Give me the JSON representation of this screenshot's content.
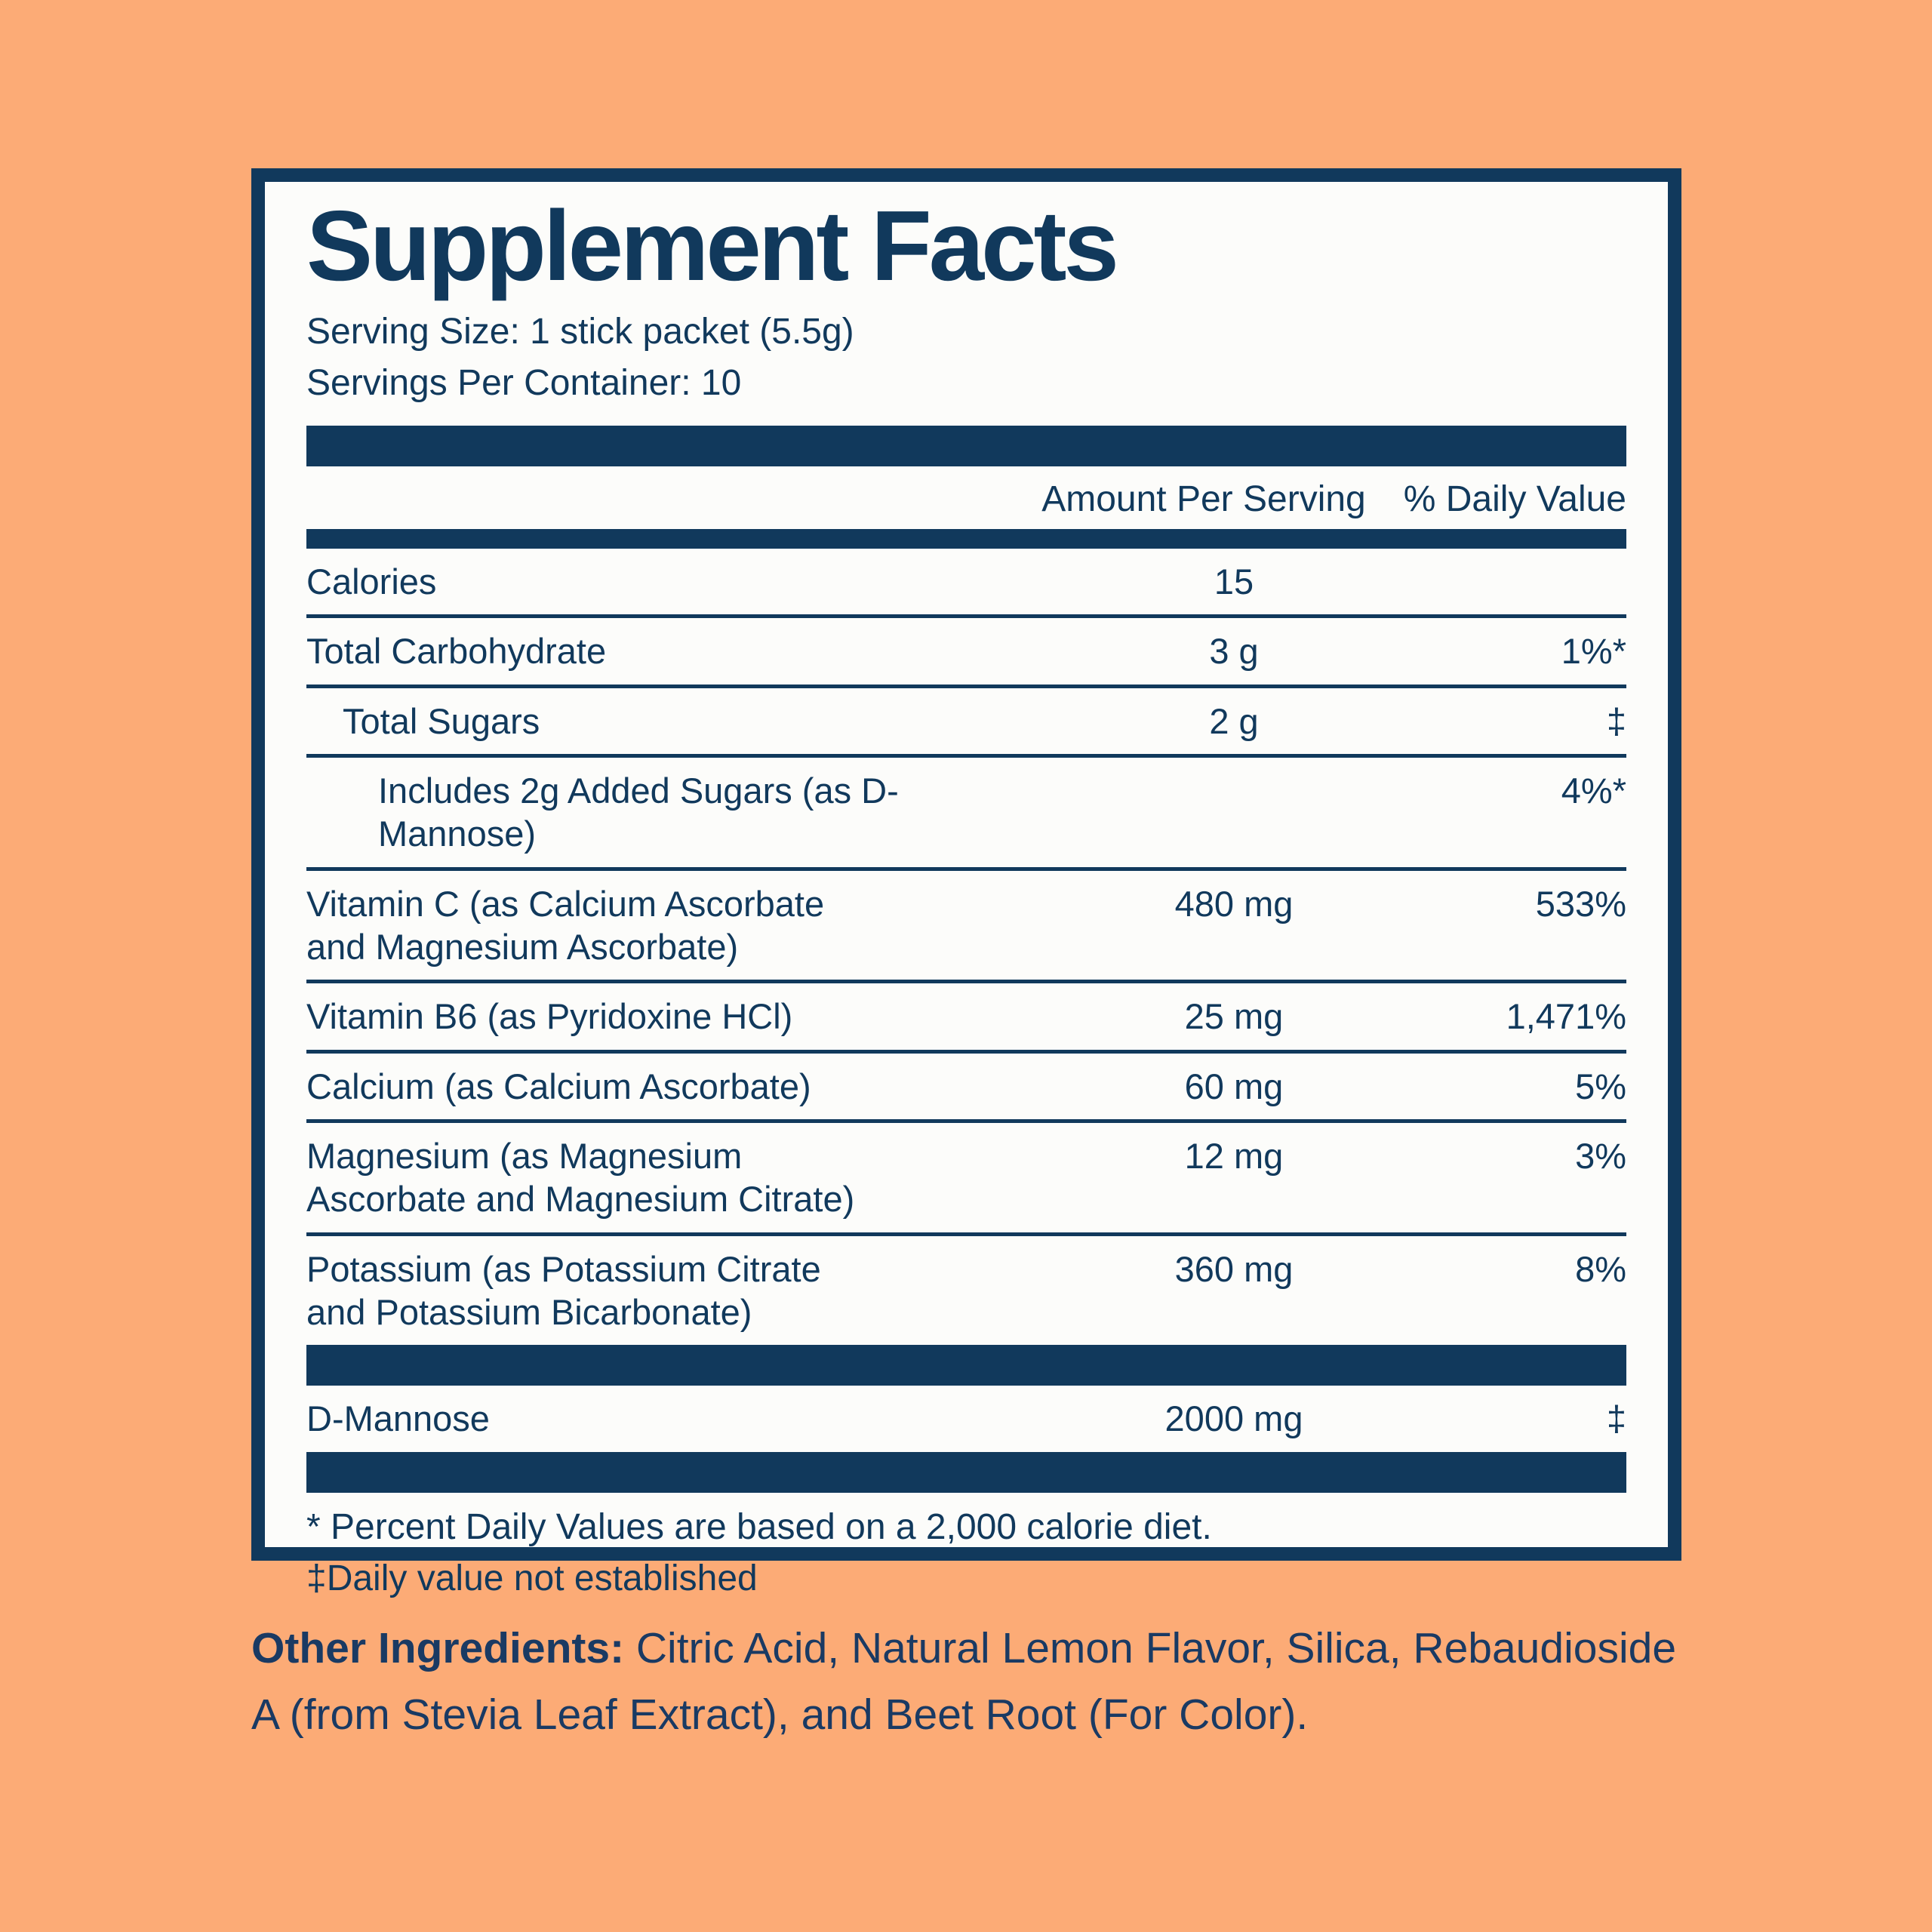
{
  "colors": {
    "background_peach": "#FCAB76",
    "panel_navy": "#11395C",
    "panel_white": "#FCFCFA"
  },
  "panel": {
    "title": "Supplement Facts",
    "serving_size": "Serving Size: 1 stick packet (5.5g)",
    "servings_per_container": "Servings Per Container: 10",
    "header": {
      "amount": "Amount Per Serving",
      "daily_value": "% Daily Value"
    },
    "rows": [
      {
        "name": "Calories",
        "amount": "15",
        "dv": "",
        "indent": 0
      },
      {
        "name": "Total Carbohydrate",
        "amount": "3 g",
        "dv": "1%*",
        "indent": 0
      },
      {
        "name": "Total Sugars",
        "amount": "2 g",
        "dv": "‡",
        "indent": 1
      },
      {
        "name": "Includes 2g Added Sugars (as D-Mannose)",
        "amount": "",
        "dv": "4%*",
        "indent": 2
      },
      {
        "name": "Vitamin C (as Calcium Ascorbate\nand Magnesium Ascorbate)",
        "amount": "480 mg",
        "dv": "533%",
        "indent": 0
      },
      {
        "name": "Vitamin B6 (as Pyridoxine HCl)",
        "amount": "25 mg",
        "dv": "1,471%",
        "indent": 0
      },
      {
        "name": "Calcium (as Calcium Ascorbate)",
        "amount": "60 mg",
        "dv": "5%",
        "indent": 0
      },
      {
        "name": "Magnesium (as Magnesium\nAscorbate and Magnesium Citrate)",
        "amount": "12 mg",
        "dv": "3%",
        "indent": 0
      },
      {
        "name": "Potassium (as Potassium Citrate\nand Potassium Bicarbonate)",
        "amount": "360 mg",
        "dv": "8%",
        "indent": 0
      }
    ],
    "extra_rows": [
      {
        "name": "D-Mannose",
        "amount": "2000 mg",
        "dv": "‡",
        "indent": 0
      }
    ],
    "footnotes": [
      "* Percent Daily Values are based on a 2,000 calorie diet.",
      "‡Daily value not established"
    ]
  },
  "other_ingredients": {
    "label": "Other Ingredients:",
    "text": " Citric Acid, Natural Lemon Flavor, Silica, Rebaudioside A (from Stevia Leaf Extract), and Beet Root (For Color)."
  }
}
